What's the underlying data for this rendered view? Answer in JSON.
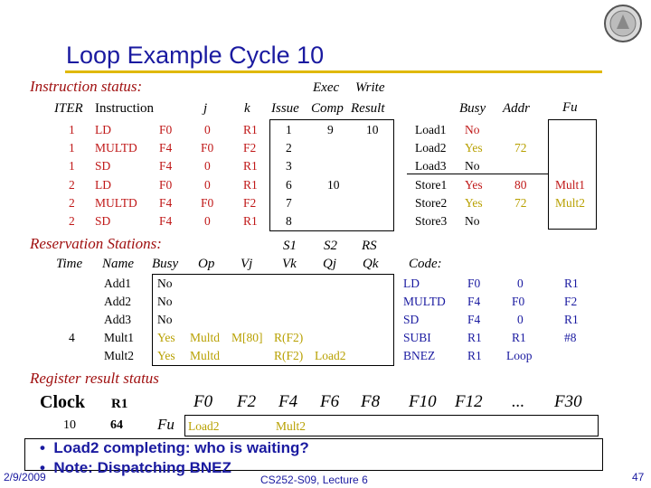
{
  "slide_title": "Loop Example Cycle 10",
  "instruction_status": {
    "label": "Instruction status:",
    "exec_label": "Exec",
    "write_label": "Write",
    "headers": {
      "iter": "ITER",
      "instruction": "Instruction",
      "j": "j",
      "k": "k",
      "issue": "Issue",
      "comp": "Comp",
      "result": "Result"
    },
    "rows": [
      {
        "iter": "1",
        "op": "LD",
        "dest": "F0",
        "j": "0",
        "k": "R1",
        "issue": "1",
        "comp": "9",
        "result": "10"
      },
      {
        "iter": "1",
        "op": "MULTD",
        "dest": "F4",
        "j": "F0",
        "k": "F2",
        "issue": "2",
        "comp": "",
        "result": ""
      },
      {
        "iter": "1",
        "op": "SD",
        "dest": "F4",
        "j": "0",
        "k": "R1",
        "issue": "3",
        "comp": "",
        "result": ""
      },
      {
        "iter": "2",
        "op": "LD",
        "dest": "F0",
        "j": "0",
        "k": "R1",
        "issue": "6",
        "comp": "10",
        "result": ""
      },
      {
        "iter": "2",
        "op": "MULTD",
        "dest": "F4",
        "j": "F0",
        "k": "F2",
        "issue": "7",
        "comp": "",
        "result": ""
      },
      {
        "iter": "2",
        "op": "SD",
        "dest": "F4",
        "j": "0",
        "k": "R1",
        "issue": "8",
        "comp": "",
        "result": ""
      }
    ]
  },
  "load_store": {
    "headers": {
      "busy": "Busy",
      "addr": "Addr",
      "fu": "Fu"
    },
    "rows": [
      {
        "name": "Load1",
        "busy": "No",
        "addr": "",
        "fu": ""
      },
      {
        "name": "Load2",
        "busy": "Yes",
        "addr": "72",
        "fu": ""
      },
      {
        "name": "Load3",
        "busy": "No",
        "addr": "",
        "fu": ""
      },
      {
        "name": "Store1",
        "busy": "Yes",
        "addr": "80",
        "fu": "Mult1"
      },
      {
        "name": "Store2",
        "busy": "Yes",
        "addr": "72",
        "fu": "Mult2"
      },
      {
        "name": "Store3",
        "busy": "No",
        "addr": "",
        "fu": ""
      }
    ]
  },
  "reservation_stations": {
    "label": "Reservation Stations:",
    "headers": {
      "s1": "S1",
      "s2": "S2",
      "rs": "RS",
      "time": "Time",
      "name": "Name",
      "busy": "Busy",
      "op": "Op",
      "vj": "Vj",
      "vk": "Vk",
      "qj": "Qj",
      "qk": "Qk",
      "code": "Code:"
    },
    "rows": [
      {
        "time": "",
        "name": "Add1",
        "busy": "No",
        "op": "",
        "vj": "",
        "vk": "",
        "qj": "",
        "qk": ""
      },
      {
        "time": "",
        "name": "Add2",
        "busy": "No",
        "op": "",
        "vj": "",
        "vk": "",
        "qj": "",
        "qk": ""
      },
      {
        "time": "",
        "name": "Add3",
        "busy": "No",
        "op": "",
        "vj": "",
        "vk": "",
        "qj": "",
        "qk": ""
      },
      {
        "time": "4",
        "name": "Mult1",
        "busy": "Yes",
        "op": "Multd",
        "vj": "M[80]",
        "vk": "R(F2)",
        "qj": "",
        "qk": ""
      },
      {
        "time": "",
        "name": "Mult2",
        "busy": "Yes",
        "op": "Multd",
        "vj": "",
        "vk": "R(F2)",
        "qj": "Load2",
        "qk": ""
      }
    ],
    "code": [
      {
        "op": "LD",
        "a": "F0",
        "b": "0",
        "c": "R1"
      },
      {
        "op": "MULTD",
        "a": "F4",
        "b": "F0",
        "c": "F2"
      },
      {
        "op": "SD",
        "a": "F4",
        "b": "0",
        "c": "R1"
      },
      {
        "op": "SUBI",
        "a": "R1",
        "b": "R1",
        "c": "#8"
      },
      {
        "op": "BNEZ",
        "a": "R1",
        "b": "Loop",
        "c": ""
      }
    ]
  },
  "register_result": {
    "label": "Register result status",
    "clock_label": "Clock",
    "r1_label": "R1",
    "fu_label": "Fu",
    "clock_value": "10",
    "r1_value": "64",
    "registers": [
      "F0",
      "F2",
      "F4",
      "F6",
      "F8",
      "F10",
      "F12",
      "...",
      "F30"
    ],
    "fu_values": [
      "Load2",
      "",
      "Mult2",
      "",
      "",
      "",
      "",
      "",
      ""
    ]
  },
  "bullets": [
    "Load2 completing: who is waiting?",
    "Note: Dispatching BNEZ"
  ],
  "footer": {
    "date": "2/9/2009",
    "course": "CS252-S09, Lecture 6",
    "page": "47"
  },
  "colors": {
    "title": "#1a1aa0",
    "section": "#a01010",
    "busy": "#b8a000",
    "rule": "#e0b800"
  }
}
